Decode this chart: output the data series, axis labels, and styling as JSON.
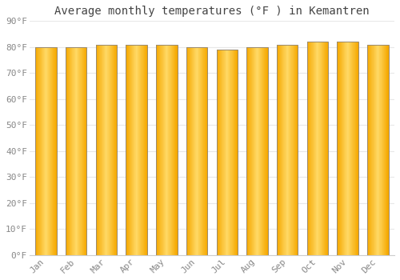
{
  "title": "Average monthly temperatures (°F ) in Kemantren",
  "months": [
    "Jan",
    "Feb",
    "Mar",
    "Apr",
    "May",
    "Jun",
    "Jul",
    "Aug",
    "Sep",
    "Oct",
    "Nov",
    "Dec"
  ],
  "values": [
    80,
    80,
    81,
    81,
    81,
    80,
    79,
    80,
    81,
    82,
    82,
    81
  ],
  "bar_color_center": "#FFD966",
  "bar_color_edge": "#F5A800",
  "bar_border_color": "#B8860B",
  "background_color": "#FFFFFF",
  "plot_bg_color": "#FFFFFF",
  "grid_color": "#E8E8E8",
  "title_color": "#444444",
  "tick_color": "#888888",
  "ylim": [
    0,
    90
  ],
  "ytick_step": 10,
  "title_fontsize": 10,
  "tick_fontsize": 8,
  "bar_width": 0.7
}
